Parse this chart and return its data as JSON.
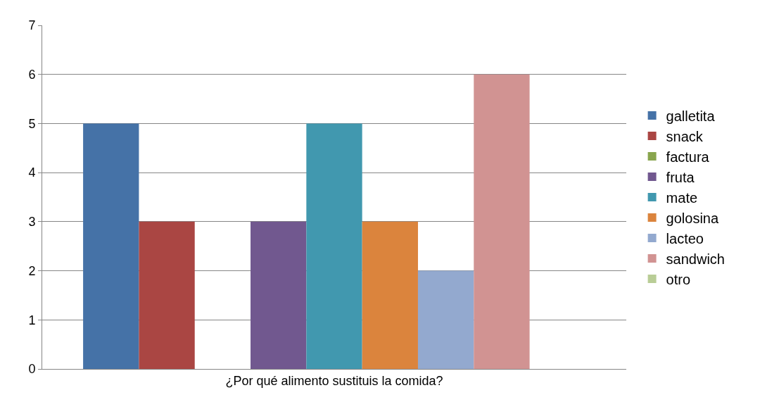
{
  "chart_data": {
    "type": "bar",
    "categories": [
      "¿Por qué alimento sustituis la comida?"
    ],
    "series": [
      {
        "name": "galletita",
        "color": "#4572a7",
        "values": [
          5
        ]
      },
      {
        "name": "snack",
        "color": "#aa4643",
        "values": [
          3
        ]
      },
      {
        "name": "factura",
        "color": "#89a54e",
        "values": [
          0
        ]
      },
      {
        "name": "fruta",
        "color": "#71588f",
        "values": [
          3
        ]
      },
      {
        "name": "mate",
        "color": "#4198af",
        "values": [
          5
        ]
      },
      {
        "name": "golosina",
        "color": "#db843d",
        "values": [
          3
        ]
      },
      {
        "name": "lacteo",
        "color": "#93a9cf",
        "values": [
          2
        ]
      },
      {
        "name": "sandwich",
        "color": "#d19392",
        "values": [
          6
        ]
      },
      {
        "name": "otro",
        "color": "#b9cd96",
        "values": [
          0
        ]
      }
    ],
    "ylim": [
      0,
      7
    ],
    "yticks": [
      0,
      1,
      2,
      3,
      4,
      5,
      6,
      7
    ],
    "grid": "y",
    "legend": "right"
  }
}
